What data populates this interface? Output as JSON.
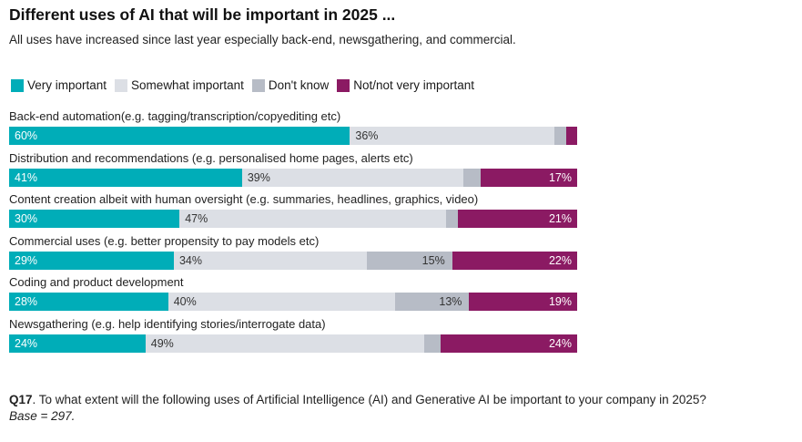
{
  "chart_data": {
    "type": "bar",
    "orientation": "horizontal",
    "stacked": true,
    "title": "Different uses of AI that will be important in 2025 ...",
    "subtitle": "All uses have increased since last year especially back-end, newsgathering, and commercial.",
    "legend_position": "top-left",
    "series": [
      {
        "name": "Very important",
        "color": "#00adb8",
        "label_color": "#ffffff",
        "values": [
          60,
          41,
          30,
          29,
          28,
          24
        ]
      },
      {
        "name": "Somewhat important",
        "color": "#dcdfe5",
        "label_color": "#333333",
        "values": [
          36,
          39,
          47,
          34,
          40,
          49
        ]
      },
      {
        "name": "Don't know",
        "color": "#b7bcc6",
        "label_color": "#333333",
        "values": [
          2,
          3,
          2,
          15,
          13,
          3
        ]
      },
      {
        "name": "Not/not very important",
        "color": "#8b1a63",
        "label_color": "#ffffff",
        "values": [
          2,
          17,
          21,
          22,
          19,
          24
        ]
      }
    ],
    "categories": [
      "Back-end automation(e.g. tagging/transcription/copyediting etc)",
      "Distribution and recommendations (e.g. personalised home pages, alerts etc)",
      "Content creation albeit with human oversight (e.g. summaries, headlines, graphics, video)",
      "Commercial uses (e.g. better propensity to pay models etc)",
      "Coding and product development",
      "Newsgathering (e.g. help identifying stories/interrogate data)"
    ],
    "data_labels": [
      [
        "60%",
        "36%",
        "",
        ""
      ],
      [
        "41%",
        "39%",
        "",
        "17%"
      ],
      [
        "30%",
        "47%",
        "",
        "21%"
      ],
      [
        "29%",
        "34%",
        "15%",
        "22%"
      ],
      [
        "28%",
        "40%",
        "13%",
        "19%"
      ],
      [
        "24%",
        "49%",
        "",
        "24%"
      ]
    ],
    "xlim": [
      0,
      100
    ]
  },
  "footer": {
    "question_id": "Q17",
    "question_text": ". To what extent will the following uses of Artificial Intelligence (AI) and Generative AI be important to your company in 2025?",
    "base": "Base = 297."
  }
}
